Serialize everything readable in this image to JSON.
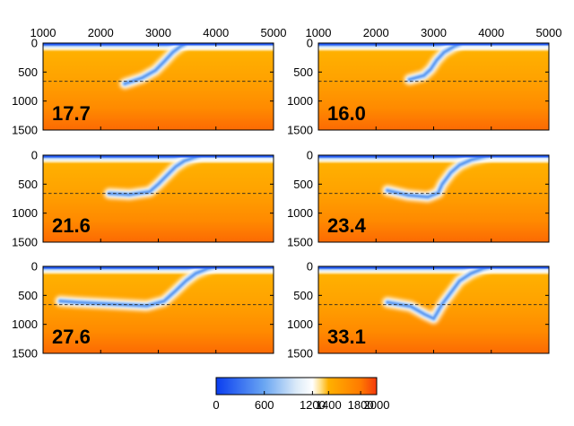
{
  "chart_data": {
    "type": "heatmap",
    "description_units": "temperature field (C); x horizontal distance, y depth",
    "x_axis": {
      "range": [
        1000,
        5000
      ],
      "ticks": [
        1000,
        2000,
        3000,
        4000,
        5000
      ],
      "tick_labels": [
        "1000",
        "2000",
        "3000",
        "4000",
        "5000"
      ]
    },
    "y_axis": {
      "range": [
        0,
        1500
      ],
      "ticks": [
        0,
        500,
        1000,
        1500
      ],
      "tick_labels": [
        "0",
        "500",
        "1000",
        "1500"
      ],
      "inverted": true
    },
    "colorbar": {
      "range": [
        0,
        2000
      ],
      "ticks": [
        0,
        600,
        1200,
        1400,
        1800,
        2000
      ],
      "tick_labels": [
        "0",
        "600",
        "1200",
        "1400",
        "1800",
        "2000"
      ],
      "stops": [
        {
          "value": 0,
          "color": "#0a3ef0"
        },
        {
          "value": 600,
          "color": "#6aa6f2"
        },
        {
          "value": 1000,
          "color": "#dbeaf8"
        },
        {
          "value": 1200,
          "color": "#ffffff"
        },
        {
          "value": 1300,
          "color": "#ffe08a"
        },
        {
          "value": 1400,
          "color": "#ffb000"
        },
        {
          "value": 1800,
          "color": "#ff7a00"
        },
        {
          "value": 2000,
          "color": "#f43a0c"
        }
      ]
    },
    "reference_line_depth": 660,
    "panels": [
      {
        "label": "17.7",
        "slab": [
          [
            3500,
            0
          ],
          [
            3380,
            60
          ],
          [
            3250,
            160
          ],
          [
            3120,
            300
          ],
          [
            2950,
            470
          ],
          [
            2720,
            600
          ],
          [
            2420,
            700
          ]
        ]
      },
      {
        "label": "16.0",
        "slab": [
          [
            3500,
            0
          ],
          [
            3350,
            60
          ],
          [
            3180,
            160
          ],
          [
            3050,
            300
          ],
          [
            2950,
            450
          ],
          [
            2830,
            560
          ],
          [
            2580,
            630
          ]
        ]
      },
      {
        "label": "21.6",
        "slab": [
          [
            3750,
            0
          ],
          [
            3620,
            40
          ],
          [
            3450,
            100
          ],
          [
            3300,
            200
          ],
          [
            3150,
            350
          ],
          [
            3000,
            500
          ],
          [
            2850,
            630
          ],
          [
            2500,
            680
          ],
          [
            2150,
            660
          ]
        ]
      },
      {
        "label": "23.4",
        "slab": [
          [
            4000,
            0
          ],
          [
            3900,
            20
          ],
          [
            3650,
            80
          ],
          [
            3450,
            170
          ],
          [
            3300,
            300
          ],
          [
            3150,
            500
          ],
          [
            3080,
            650
          ],
          [
            2900,
            720
          ],
          [
            2550,
            690
          ],
          [
            2200,
            610
          ]
        ]
      },
      {
        "label": "27.6",
        "slab": [
          [
            4000,
            0
          ],
          [
            3850,
            40
          ],
          [
            3650,
            120
          ],
          [
            3480,
            250
          ],
          [
            3300,
            420
          ],
          [
            3100,
            600
          ],
          [
            2800,
            680
          ],
          [
            2200,
            650
          ],
          [
            1600,
            620
          ],
          [
            1300,
            600
          ]
        ]
      },
      {
        "label": "33.1",
        "slab": [
          [
            4000,
            0
          ],
          [
            3850,
            40
          ],
          [
            3650,
            120
          ],
          [
            3450,
            250
          ],
          [
            3300,
            450
          ],
          [
            3150,
            650
          ],
          [
            3050,
            820
          ],
          [
            3000,
            900
          ],
          [
            2850,
            830
          ],
          [
            2600,
            690
          ],
          [
            2200,
            620
          ]
        ]
      }
    ]
  }
}
